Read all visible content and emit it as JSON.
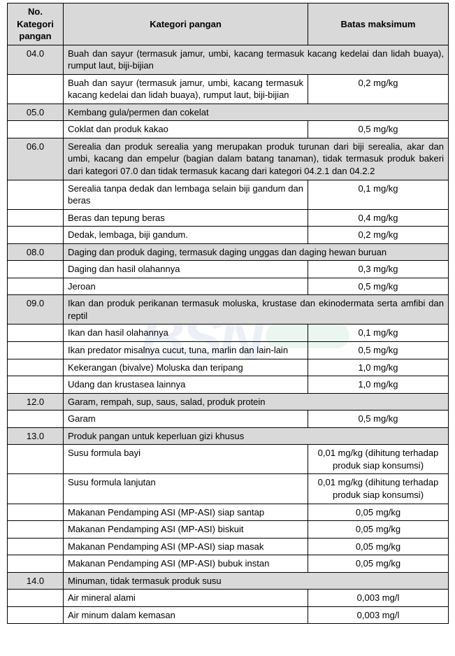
{
  "headers": {
    "col1": "No. Kategori pangan",
    "col2": "Kategori pangan",
    "col3": "Batas maksimum"
  },
  "cat04": {
    "no": "04.0",
    "title": "Buah dan sayur (termasuk jamur, umbi, kacang termasuk kacang kedelai dan lidah buaya), rumput laut, biji-bijian",
    "r1_desc": "Buah dan sayur (termasuk jamur, umbi, kacang termasuk kacang kedelai dan lidah buaya), rumput laut, biji-bijian",
    "r1_limit": "0,2 mg/kg"
  },
  "cat05": {
    "no": "05.0",
    "title": "Kembang gula/permen dan cokelat",
    "r1_desc": "Coklat dan produk kakao",
    "r1_limit": "0,5 mg/kg"
  },
  "cat06": {
    "no": "06.0",
    "title": "Serealia dan produk serealia yang merupakan produk turunan dari biji serealia, akar dan umbi, kacang dan empelur (bagian dalam batang tanaman), tidak termasuk produk bakeri dari kategori 07.0 dan tidak termasuk kacang dari kategori 04.2.1 dan 04.2.2",
    "r1_desc": "Serealia tanpa dedak dan lembaga selain biji gandum dan beras",
    "r1_limit": "0,1 mg/kg",
    "r2_desc": "Beras dan tepung beras",
    "r2_limit": "0,4 mg/kg",
    "r3_desc": "Dedak, lembaga, biji gandum.",
    "r3_limit": "0,2 mg/kg"
  },
  "cat08": {
    "no": "08.0",
    "title": "Daging dan produk daging, termasuk daging unggas dan daging hewan buruan",
    "r1_desc": "Daging dan hasil olahannya",
    "r1_limit": "0,3 mg/kg",
    "r2_desc": "Jeroan",
    "r2_limit": "0,5 mg/kg"
  },
  "cat09": {
    "no": "09.0",
    "title": "Ikan dan produk perikanan termasuk moluska, krustase dan ekinodermata serta amfibi dan reptil",
    "r1_desc": "Ikan dan hasil olahannya",
    "r1_limit": "0,1 mg/kg",
    "r2_desc": "Ikan predator misalnya cucut, tuna, marlin dan lain-lain",
    "r2_limit": "0,5 mg/kg",
    "r3_desc": "Kekerangan (bivalve) Moluska dan teripang",
    "r3_limit": "1,0 mg/kg",
    "r4_desc": "Udang dan krustasea lainnya",
    "r4_limit": "1,0 mg/kg"
  },
  "cat12": {
    "no": "12.0",
    "title": "Garam, rempah, sup, saus, salad, produk protein",
    "r1_desc": "Garam",
    "r1_limit": "0,5 mg/kg"
  },
  "cat13": {
    "no": "13.0",
    "title": "Produk pangan untuk keperluan gizi khusus",
    "r1_desc": "Susu formula bayi",
    "r1_limit": "0,01 mg/kg (dihitung terhadap produk siap konsumsi)",
    "r2_desc": "Susu formula lanjutan",
    "r2_limit": "0,01 mg/kg (dihitung terhadap produk siap konsumsi)",
    "r3_desc": "Makanan Pendamping ASI (MP-ASI)  siap santap",
    "r3_limit": "0,05 mg/kg",
    "r4_desc": "Makanan Pendamping ASI (MP-ASI)  biskuit",
    "r4_limit": "0,05 mg/kg",
    "r5_desc": "Makanan Pendamping ASI (MP-ASI)  siap masak",
    "r5_limit": "0,05 mg/kg",
    "r6_desc": "Makanan Pendamping ASI (MP-ASI)  bubuk instan",
    "r6_limit": "0,05 mg/kg"
  },
  "cat14": {
    "no": "14.0",
    "title": "Minuman, tidak termasuk produk susu",
    "r1_desc": "Air mineral alami",
    "r1_limit": "0,003 mg/l",
    "r2_desc": "Air minum dalam kemasan",
    "r2_limit": "0,003 mg/l"
  }
}
